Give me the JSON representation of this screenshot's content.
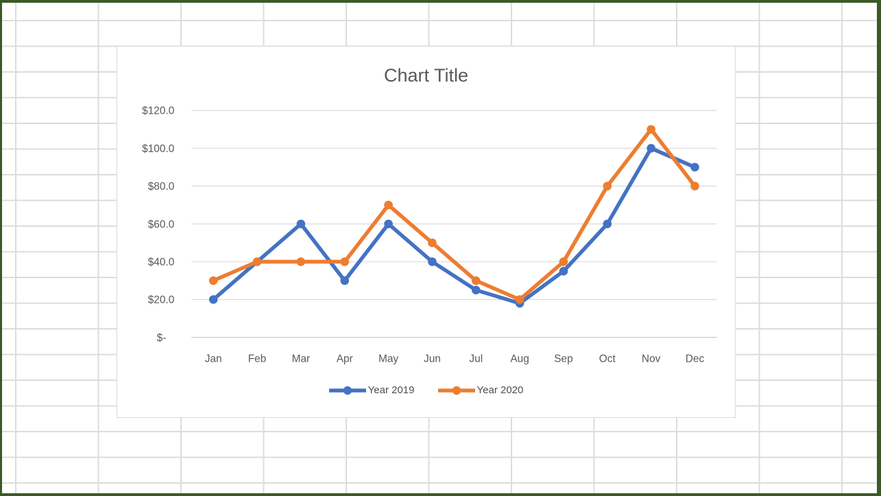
{
  "theme": {
    "frame_border_color": "#3a5a27",
    "sheet_gridline_color": "#dcdcdc",
    "chart_border_color": "#d9d9d9"
  },
  "chart_data": {
    "type": "line",
    "title": "Chart Title",
    "categories": [
      "Jan",
      "Feb",
      "Mar",
      "Apr",
      "May",
      "Jun",
      "Jul",
      "Aug",
      "Sep",
      "Oct",
      "Nov",
      "Dec"
    ],
    "series": [
      {
        "name": "Year 2019",
        "color": "#4472C4",
        "values": [
          20,
          40,
          60,
          30,
          60,
          40,
          25,
          18,
          35,
          60,
          100,
          90
        ]
      },
      {
        "name": "Year 2020",
        "color": "#ED7D31",
        "values": [
          30,
          40,
          40,
          40,
          70,
          50,
          30,
          20,
          40,
          80,
          110,
          80
        ]
      }
    ],
    "y_ticks": [
      "$120.0",
      "$100.0",
      "$80.0",
      "$60.0",
      "$40.0",
      "$20.0",
      "$-"
    ],
    "y_tick_values": [
      120,
      100,
      80,
      60,
      40,
      20,
      0
    ],
    "ylim": [
      0,
      120
    ],
    "grid": true,
    "legend_position": "bottom",
    "marker": "circle",
    "gridline_color": "#d9d9d9",
    "axis_line_color": "#c8c8c8",
    "text_color": "#595959",
    "legend_text_color": "#4d4d4d"
  }
}
